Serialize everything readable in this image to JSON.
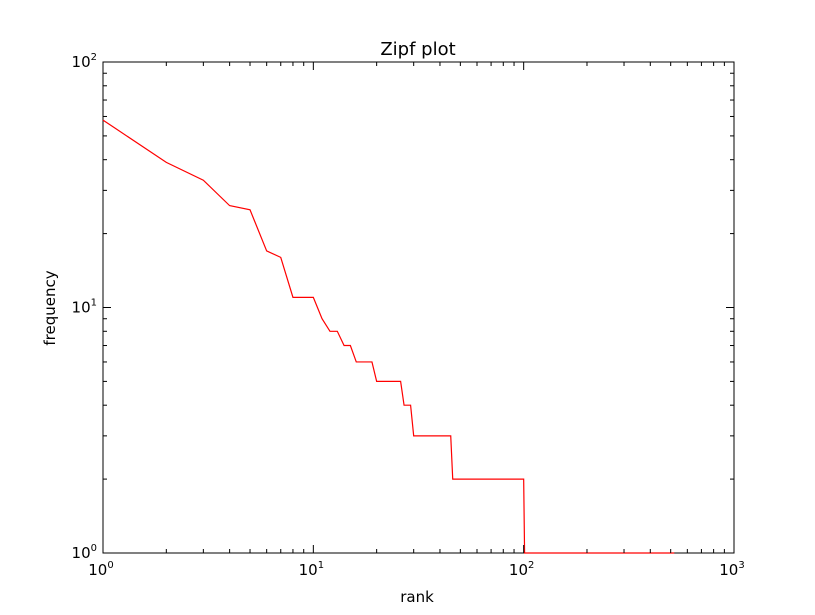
{
  "chart_data": {
    "type": "line",
    "title": "Zipf plot",
    "xlabel": "rank",
    "ylabel": "frequency",
    "xscale": "log",
    "yscale": "log",
    "xlim": [
      1,
      1000
    ],
    "ylim": [
      1,
      100
    ],
    "grid": false,
    "legend": "none",
    "x_ticks": [
      {
        "base": "10",
        "exp": "0",
        "value": 1
      },
      {
        "base": "10",
        "exp": "1",
        "value": 10
      },
      {
        "base": "10",
        "exp": "2",
        "value": 100
      },
      {
        "base": "10",
        "exp": "3",
        "value": 1000
      }
    ],
    "y_ticks": [
      {
        "base": "10",
        "exp": "0",
        "value": 1
      },
      {
        "base": "10",
        "exp": "1",
        "value": 10
      },
      {
        "base": "10",
        "exp": "2",
        "value": 100
      }
    ],
    "series": [
      {
        "color": "#ff0000",
        "points": [
          [
            1,
            58
          ],
          [
            2,
            39
          ],
          [
            3,
            33
          ],
          [
            4,
            26
          ],
          [
            5,
            25
          ],
          [
            6,
            17
          ],
          [
            7,
            16
          ],
          [
            8,
            11
          ],
          [
            10,
            11
          ],
          [
            11,
            9
          ],
          [
            12,
            8
          ],
          [
            13,
            8
          ],
          [
            14,
            7
          ],
          [
            15,
            7
          ],
          [
            16,
            6
          ],
          [
            19,
            6
          ],
          [
            20,
            5
          ],
          [
            26,
            5
          ],
          [
            27,
            4
          ],
          [
            29,
            4
          ],
          [
            30,
            3
          ],
          [
            45,
            3
          ],
          [
            46,
            2
          ],
          [
            100,
            2
          ],
          [
            101,
            1
          ],
          [
            520,
            1
          ]
        ]
      }
    ]
  }
}
